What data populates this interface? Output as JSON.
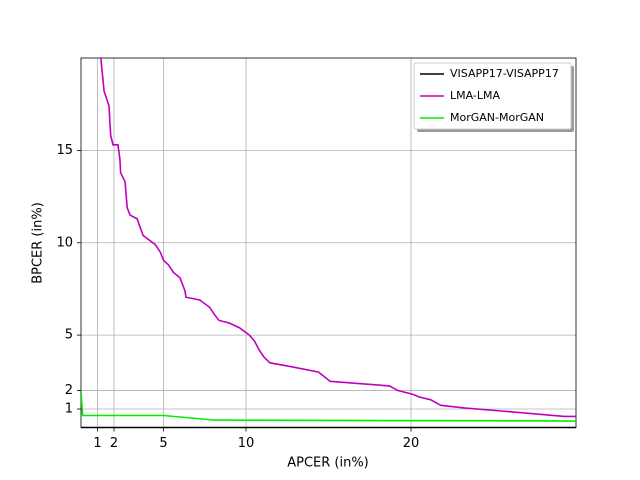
{
  "chart_data": {
    "type": "line",
    "xlabel": "APCER (in%)",
    "ylabel": "BPCER (in%)",
    "xlim": [
      0,
      30
    ],
    "ylim": [
      0,
      20
    ],
    "xticks": [
      1,
      2,
      5,
      10,
      20
    ],
    "yticks": [
      1,
      2,
      5,
      10,
      15
    ],
    "grid": true,
    "legend": "upper right",
    "series": [
      {
        "name": "VISAPP17-VISAPP17",
        "color": "#000000",
        "x": [
          0,
          30
        ],
        "values": [
          0,
          0
        ]
      },
      {
        "name": "LMA-LMA",
        "color": "#bf00bf",
        "x": [
          1.2,
          1.4,
          1.7,
          1.75,
          1.8,
          1.94,
          2.24,
          2.36,
          2.4,
          2.67,
          2.8,
          2.97,
          3.4,
          3.76,
          4.2,
          4.5,
          4.8,
          5.0,
          5.3,
          5.6,
          6.0,
          6.3,
          6.36,
          7.2,
          7.8,
          8.1,
          8.36,
          9.0,
          9.6,
          10.2,
          10.5,
          10.8,
          11.1,
          11.45,
          12.7,
          14.4,
          15.1,
          18.7,
          19.2,
          20.1,
          20.5,
          21.2,
          21.8,
          23.3,
          25.4,
          29.3,
          30
        ],
        "values": [
          20,
          18.2,
          17.4,
          16.5,
          15.8,
          15.3,
          15.3,
          14.5,
          13.8,
          13.3,
          11.9,
          11.5,
          11.3,
          10.4,
          10.1,
          9.9,
          9.5,
          9.05,
          8.8,
          8.4,
          8.1,
          7.4,
          7.05,
          6.9,
          6.5,
          6.1,
          5.8,
          5.65,
          5.4,
          5.0,
          4.7,
          4.2,
          3.8,
          3.5,
          3.3,
          3.0,
          2.5,
          2.25,
          2.0,
          1.8,
          1.65,
          1.5,
          1.2,
          1.05,
          0.9,
          0.6,
          0.6
        ]
      },
      {
        "name": "MorGAN-MorGAN",
        "color": "#00ee00",
        "x": [
          0,
          0.1,
          5,
          8.1,
          30
        ],
        "values": [
          2,
          0.65,
          0.65,
          0.4,
          0.35
        ]
      }
    ]
  }
}
